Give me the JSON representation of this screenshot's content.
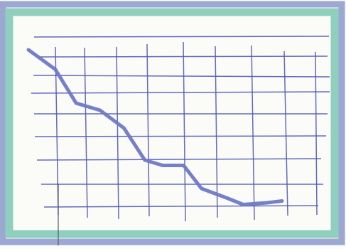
{
  "colors": {
    "paper": "#fbfbf8",
    "frame_outer": "#9ca8d2",
    "frame_inner": "#8fcfbe",
    "grid": "#4f58b3",
    "line": "#6f79c6"
  },
  "chart_data": {
    "type": "line",
    "title": "",
    "xlabel": "",
    "ylabel": "",
    "xlim": [
      0,
      10
    ],
    "ylim": [
      0,
      10
    ],
    "grid": true,
    "legend": "none",
    "series": [
      {
        "x": [
          0.0,
          0.9,
          1.6,
          2.4,
          3.2,
          3.9,
          4.5,
          5.2,
          5.8,
          6.6,
          7.2,
          8.0,
          8.5
        ],
        "y": [
          9.2,
          8.1,
          6.2,
          5.8,
          4.8,
          3.0,
          2.7,
          2.7,
          1.4,
          0.9,
          0.5,
          0.6,
          0.7
        ]
      }
    ]
  }
}
